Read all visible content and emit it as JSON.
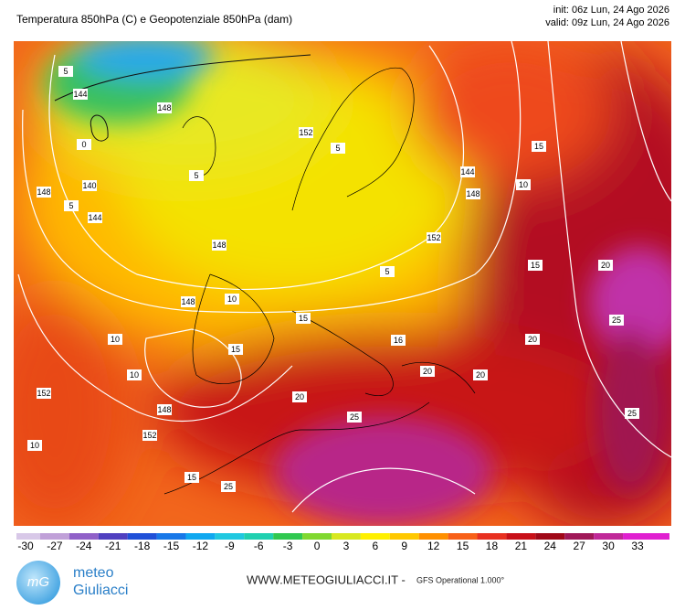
{
  "header": {
    "title": "Temperatura 850hPa (C) e Geopotenziale 850hPa (dam)",
    "init": "init: 06z Lun, 24 Ago 2026",
    "valid": "valid: 09z Lun, 24 Ago 2026"
  },
  "contour_labels": [
    "5",
    "144",
    "0",
    "148",
    "140",
    "144",
    "5",
    "5",
    "148",
    "152",
    "5",
    "144",
    "148",
    "152",
    "15",
    "10",
    "10",
    "148",
    "10",
    "15",
    "15",
    "20",
    "16",
    "20",
    "25",
    "25",
    "20",
    "15",
    "25",
    "10",
    "148",
    "152",
    "10",
    "20",
    "15",
    "5",
    "148",
    "152",
    "20",
    "25"
  ],
  "colorbar": {
    "ticks": [
      -30,
      -27,
      -24,
      -21,
      -18,
      -15,
      -12,
      -9,
      -6,
      -3,
      0,
      3,
      6,
      9,
      12,
      15,
      18,
      21,
      24,
      27,
      30,
      33
    ],
    "colors": [
      "#d8c8e8",
      "#c0a0d8",
      "#9060c8",
      "#5040c0",
      "#2050d8",
      "#1878e8",
      "#10a8f0",
      "#20c8e0",
      "#20d0b0",
      "#30c850",
      "#80d830",
      "#d8e820",
      "#fff000",
      "#ffc800",
      "#ff9000",
      "#f86018",
      "#e83020",
      "#c81018",
      "#a00818",
      "#a01858",
      "#c02898",
      "#e020d0"
    ]
  },
  "footer": {
    "logo_mark": "mG",
    "logo_line1": "meteo",
    "logo_line2": "Giuliacci",
    "website": "WWW.METEOGIULIACCI.IT -",
    "model": "GFS Operational 1.000°"
  }
}
